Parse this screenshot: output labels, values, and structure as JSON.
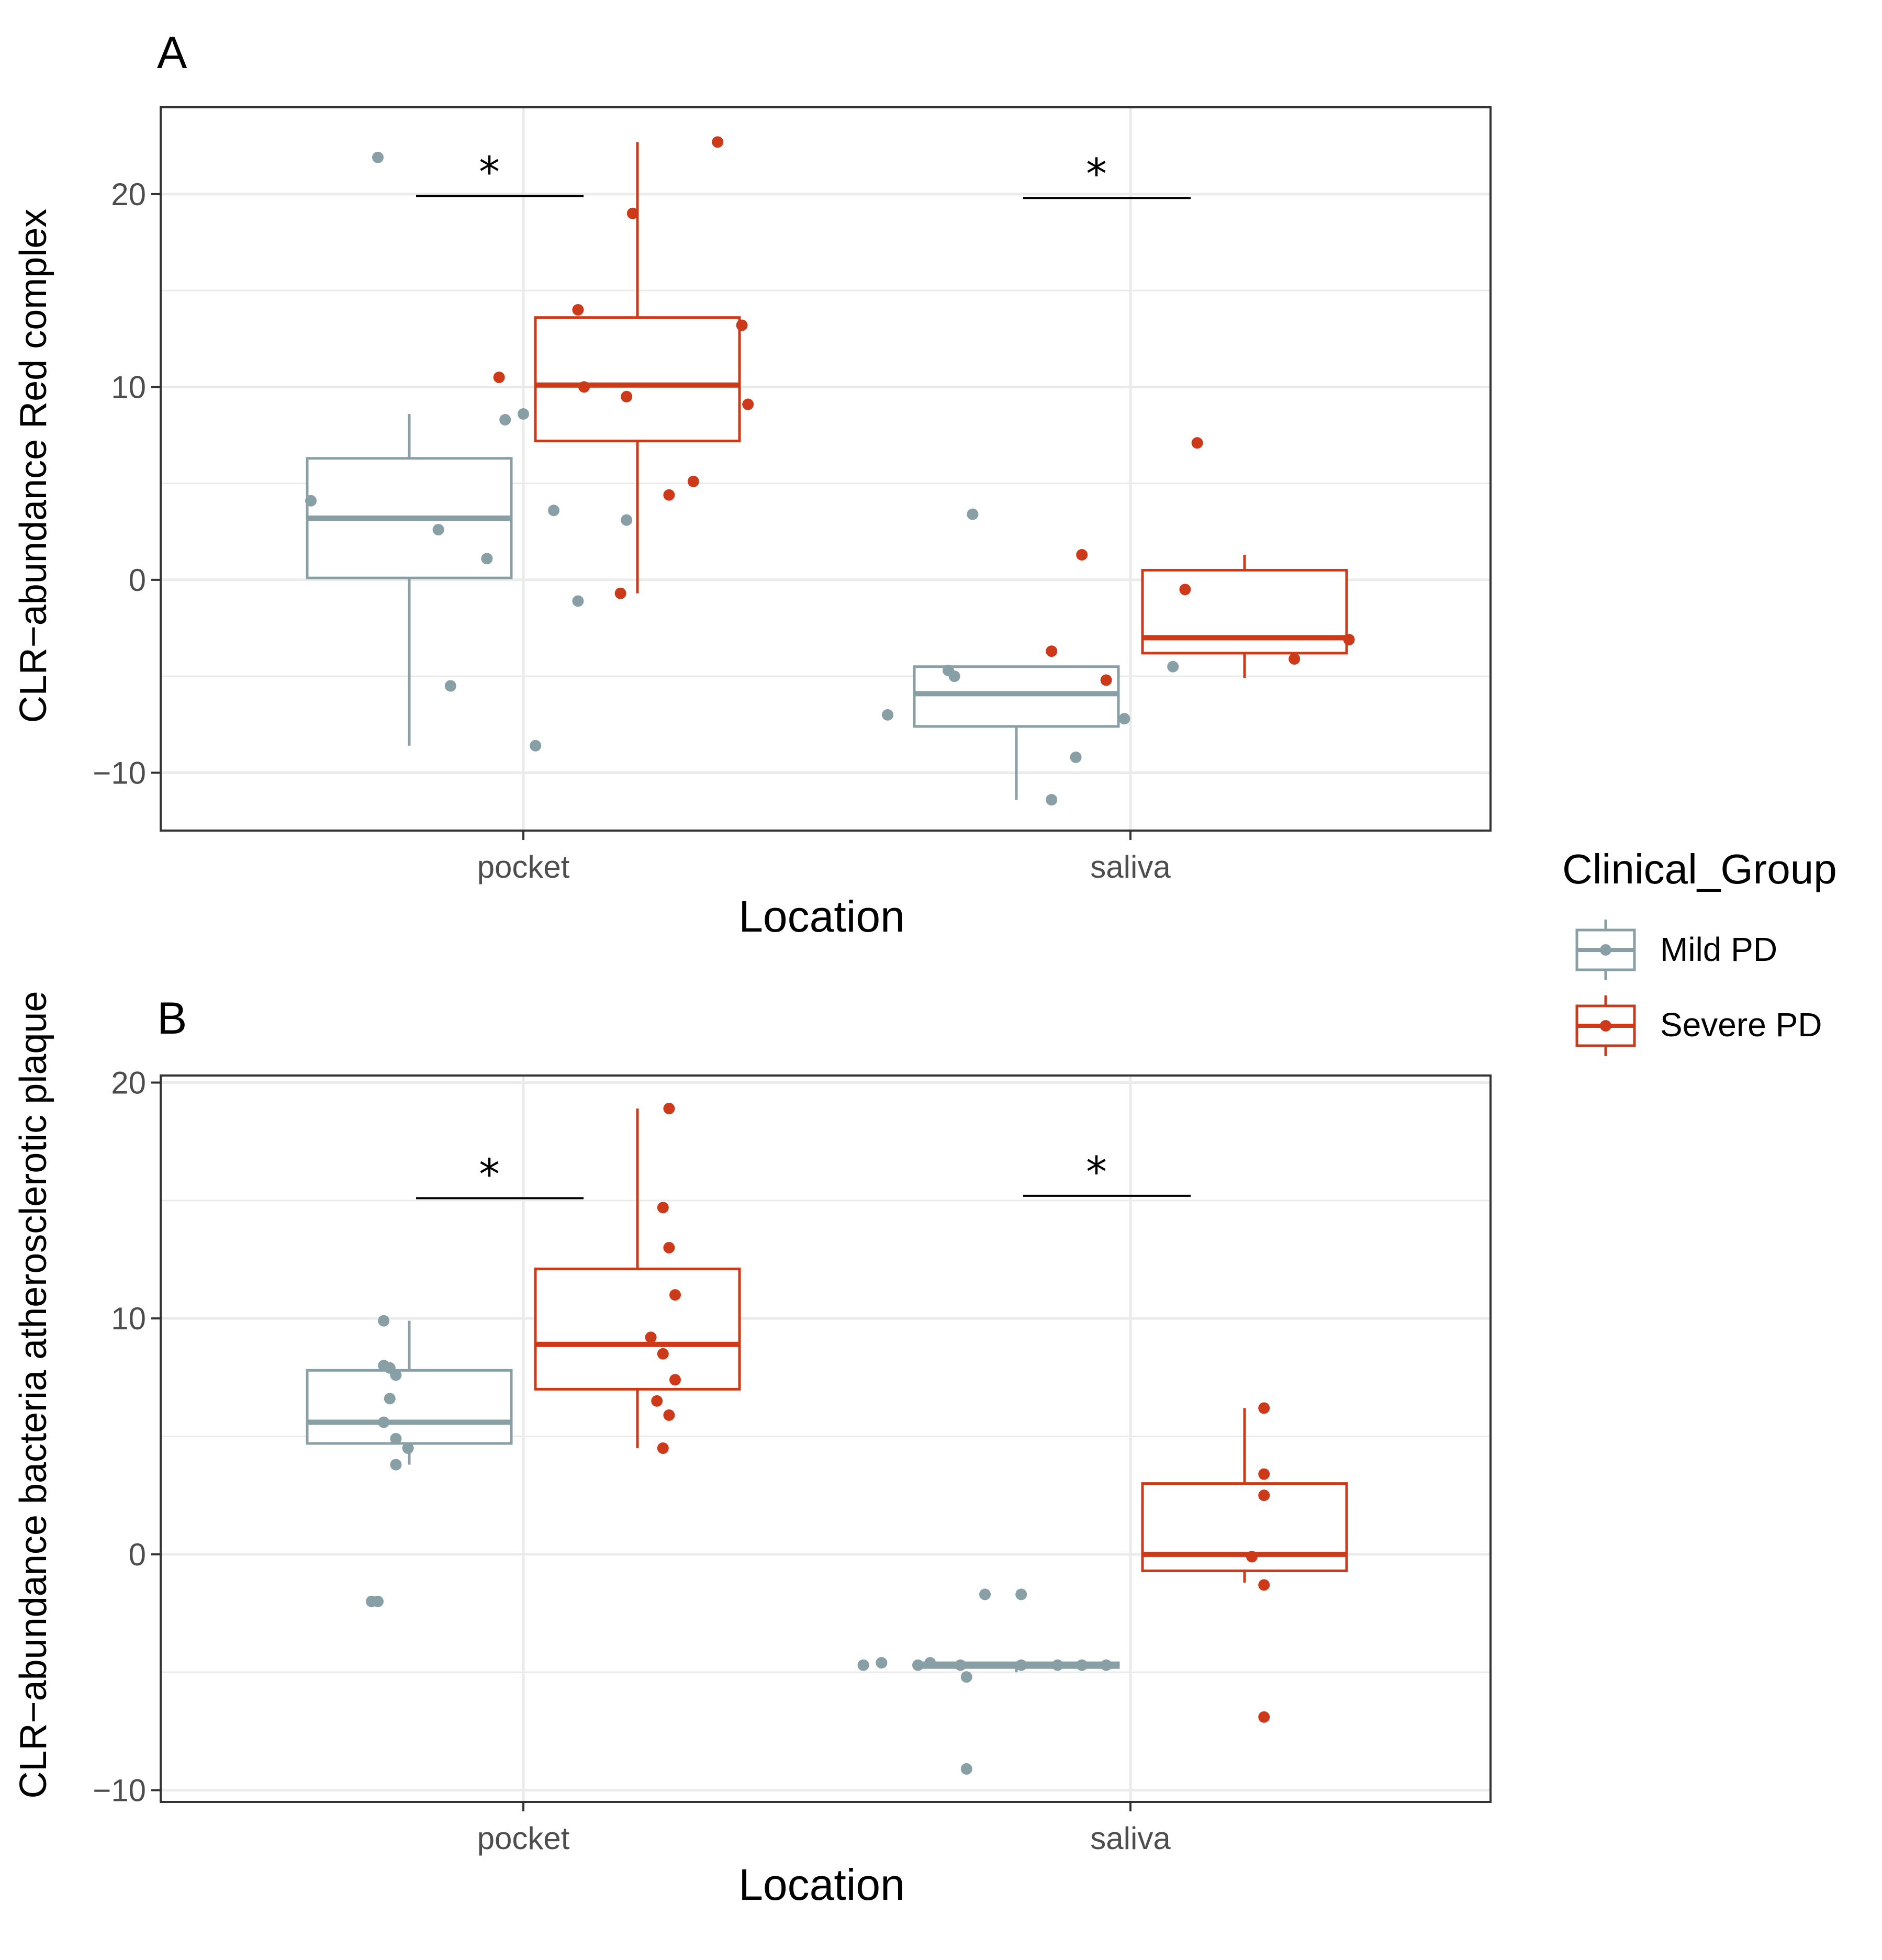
{
  "colors": {
    "mild": "#889fa5",
    "severe": "#cc3a19",
    "grid": "#ebebeb",
    "border": "#333333"
  },
  "legend": {
    "title": "Clinical_Group",
    "items": [
      {
        "label": "Mild PD",
        "color": "#889fa5"
      },
      {
        "label": "Severe PD",
        "color": "#cc3a19"
      }
    ]
  },
  "chart_data": [
    {
      "type": "box",
      "panel": "A",
      "xlabel": "Location",
      "ylabel": "CLR−abundance Red complex",
      "categories": [
        "pocket",
        "saliva"
      ],
      "ylim": [
        -13,
        24.5
      ],
      "yticks": [
        -10,
        0,
        10,
        20
      ],
      "ytick_labels": [
        "−10",
        "0",
        "10",
        "20"
      ],
      "significance": [
        {
          "category": "pocket",
          "label": "*",
          "y": 19.9
        },
        {
          "category": "saliva",
          "label": "*",
          "y": 19.8
        }
      ],
      "groups": [
        {
          "category": "pocket",
          "series": "Mild PD",
          "q1": 0.1,
          "median": 3.2,
          "q3": 6.3,
          "whisker_low": -8.6,
          "whisker_high": 8.6,
          "outliers": [
            21.9
          ],
          "points": [
            [
              -0.35,
              4.1
            ],
            [
              -0.14,
              2.6
            ],
            [
              -0.03,
              8.3
            ],
            [
              0.0,
              8.6
            ],
            [
              -0.06,
              1.1
            ],
            [
              0.02,
              -8.6
            ],
            [
              -0.12,
              -5.5
            ],
            [
              0.05,
              3.6
            ],
            [
              0.09,
              -1.1
            ],
            [
              0.17,
              3.1
            ]
          ]
        },
        {
          "category": "pocket",
          "series": "Severe PD",
          "q1": 7.2,
          "median": 10.1,
          "q3": 13.6,
          "whisker_low": -0.7,
          "whisker_high": 22.7,
          "points": [
            [
              -0.04,
              10.5
            ],
            [
              0.1,
              10.0
            ],
            [
              0.09,
              14.0
            ],
            [
              0.17,
              9.5
            ],
            [
              0.24,
              4.4
            ],
            [
              0.28,
              5.1
            ],
            [
              0.32,
              22.7
            ],
            [
              0.36,
              13.2
            ],
            [
              0.37,
              9.1
            ],
            [
              0.16,
              -0.7
            ],
            [
              0.18,
              19.0
            ]
          ]
        },
        {
          "category": "saliva",
          "series": "Mild PD",
          "q1": -7.6,
          "median": -5.9,
          "q3": -4.5,
          "whisker_low": -11.4,
          "whisker_high": -4.5,
          "points": [
            [
              -0.4,
              -7.0
            ],
            [
              -0.3,
              -4.7
            ],
            [
              -0.29,
              -5.0
            ],
            [
              -0.26,
              3.4
            ],
            [
              -0.13,
              -11.4
            ],
            [
              -0.09,
              -9.2
            ],
            [
              -0.01,
              -7.2
            ],
            [
              0.07,
              -4.5
            ]
          ]
        },
        {
          "category": "saliva",
          "series": "Severe PD",
          "q1": -3.8,
          "median": -3.0,
          "q3": 0.5,
          "whisker_low": -5.1,
          "whisker_high": 1.3,
          "points": [
            [
              -0.13,
              -3.7
            ],
            [
              -0.08,
              1.3
            ],
            [
              -0.04,
              -5.2
            ],
            [
              0.09,
              -0.5
            ],
            [
              0.11,
              7.1
            ],
            [
              0.27,
              -4.1
            ],
            [
              0.36,
              -3.1
            ]
          ]
        }
      ]
    },
    {
      "type": "box",
      "panel": "B",
      "xlabel": "Location",
      "ylabel": "CLR−abundance bacteria atherosclerotic plaque",
      "categories": [
        "pocket",
        "saliva"
      ],
      "ylim": [
        -10.5,
        20.3
      ],
      "yticks": [
        -10,
        0,
        10,
        20
      ],
      "ytick_labels": [
        "−10",
        "0",
        "10",
        "20"
      ],
      "significance": [
        {
          "category": "pocket",
          "label": "*",
          "y": 15.1
        },
        {
          "category": "saliva",
          "label": "*",
          "y": 15.2
        }
      ],
      "groups": [
        {
          "category": "pocket",
          "series": "Mild PD",
          "q1": 4.7,
          "median": 5.6,
          "q3": 7.8,
          "whisker_low": 3.8,
          "whisker_high": 9.9,
          "outliers": [
            -2.0
          ],
          "points": [
            [
              -0.23,
              9.9
            ],
            [
              -0.23,
              8.0
            ],
            [
              -0.22,
              7.9
            ],
            [
              -0.21,
              7.6
            ],
            [
              -0.22,
              6.6
            ],
            [
              -0.23,
              5.6
            ],
            [
              -0.21,
              4.9
            ],
            [
              -0.19,
              4.5
            ],
            [
              -0.21,
              3.8
            ],
            [
              -0.25,
              -2.0
            ]
          ]
        },
        {
          "category": "pocket",
          "series": "Severe PD",
          "q1": 7.0,
          "median": 8.9,
          "q3": 12.1,
          "whisker_low": 4.5,
          "whisker_high": 18.9,
          "points": [
            [
              0.24,
              18.9
            ],
            [
              0.23,
              14.7
            ],
            [
              0.24,
              13.0
            ],
            [
              0.25,
              11.0
            ],
            [
              0.21,
              9.2
            ],
            [
              0.23,
              8.5
            ],
            [
              0.25,
              7.4
            ],
            [
              0.22,
              6.5
            ],
            [
              0.24,
              5.9
            ],
            [
              0.23,
              4.5
            ]
          ]
        },
        {
          "category": "saliva",
          "series": "Mild PD",
          "q1": -4.8,
          "median": -4.7,
          "q3": -4.6,
          "whisker_low": -5.0,
          "whisker_high": -4.6,
          "outliers": [
            -1.7
          ],
          "points": [
            [
              -0.44,
              -4.7
            ],
            [
              -0.41,
              -4.6
            ],
            [
              -0.35,
              -4.7
            ],
            [
              -0.33,
              -4.6
            ],
            [
              -0.28,
              -4.7
            ],
            [
              -0.27,
              -5.2
            ],
            [
              -0.27,
              -9.1
            ],
            [
              -0.18,
              -4.7
            ],
            [
              -0.18,
              -1.7
            ],
            [
              -0.12,
              -4.7
            ],
            [
              -0.08,
              -4.7
            ],
            [
              -0.04,
              -4.7
            ]
          ]
        },
        {
          "category": "saliva",
          "series": "Severe PD",
          "q1": -0.7,
          "median": 0.0,
          "q3": 3.0,
          "whisker_low": -1.2,
          "whisker_high": 6.2,
          "points": [
            [
              0.22,
              6.2
            ],
            [
              0.22,
              3.4
            ],
            [
              0.22,
              2.5
            ],
            [
              0.2,
              -0.1
            ],
            [
              0.22,
              -1.3
            ],
            [
              0.22,
              -6.9
            ]
          ]
        }
      ]
    }
  ]
}
